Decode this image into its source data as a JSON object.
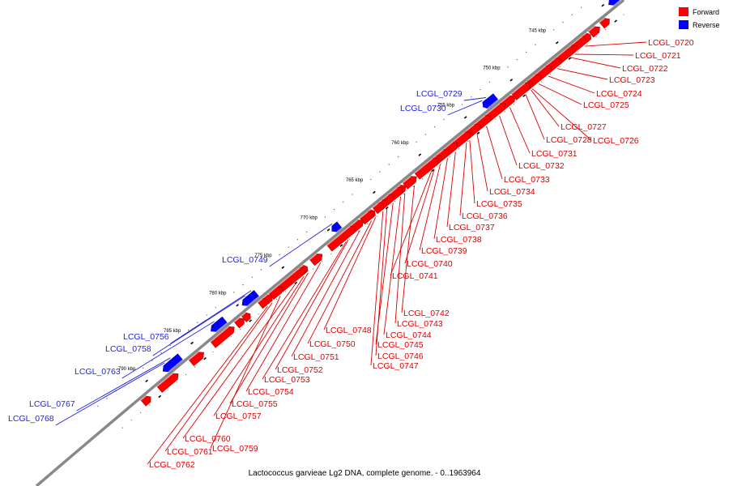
{
  "caption": "Lactococcus garvieae Lg2 DNA, complete genome. - 0..1963964",
  "legend": [
    {
      "label": "Forward",
      "color": "#ff0000"
    },
    {
      "label": "Reverse",
      "color": "#0000ff"
    }
  ],
  "colors": {
    "forward": "#ff0000",
    "reverse": "#0000ff",
    "forward_line": "#dd0000",
    "reverse_line": "#2222dd",
    "backbone": "#888888"
  },
  "ticks": [
    {
      "label": "745 kbp"
    },
    {
      "label": "750 kbp"
    },
    {
      "label": "755 kbp"
    },
    {
      "label": "760 kbp"
    },
    {
      "label": "765 kbp"
    },
    {
      "label": "770 kbp"
    },
    {
      "label": "775 kbp"
    },
    {
      "label": "780 kbp"
    },
    {
      "label": "785 kbp"
    },
    {
      "label": "790 kbp"
    }
  ],
  "genes_forward": [
    "LCGL_0720",
    "LCGL_0721",
    "LCGL_0722",
    "LCGL_0723",
    "LCGL_0724",
    "LCGL_0725",
    "LCGL_0727",
    "LCGL_0726",
    "LCGL_0728",
    "LCGL_0731",
    "LCGL_0732",
    "LCGL_0733",
    "LCGL_0734",
    "LCGL_0735",
    "LCGL_0736",
    "LCGL_0737",
    "LCGL_0738",
    "LCGL_0739",
    "LCGL_0740",
    "LCGL_0741",
    "LCGL_0742",
    "LCGL_0743",
    "LCGL_0744",
    "LCGL_0745",
    "LCGL_0746",
    "LCGL_0747",
    "LCGL_0748",
    "LCGL_0750",
    "LCGL_0751",
    "LCGL_0752",
    "LCGL_0753",
    "LCGL_0754",
    "LCGL_0755",
    "LCGL_0757",
    "LCGL_0760",
    "LCGL_0759",
    "LCGL_0761",
    "LCGL_0762"
  ],
  "genes_reverse": [
    "LCGL_0729",
    "LCGL_0730",
    "LCGL_0749",
    "LCGL_0756",
    "LCGL_0758",
    "LCGL_0763",
    "LCGL_0767",
    "LCGL_0768"
  ]
}
